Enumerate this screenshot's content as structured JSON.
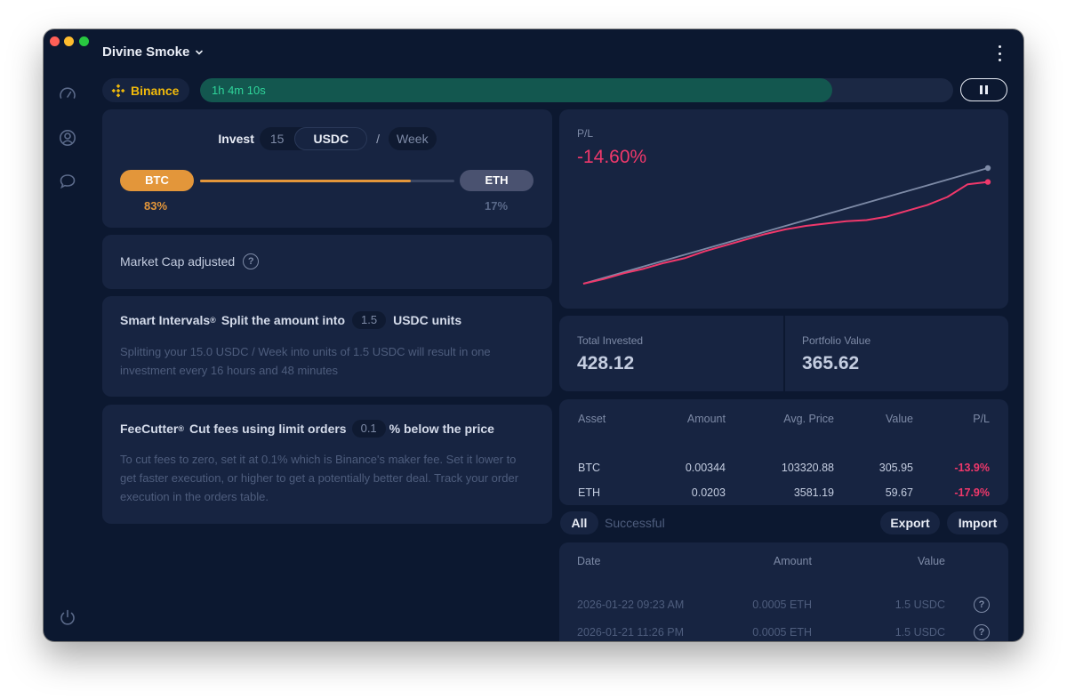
{
  "window": {
    "title": "Divine Smoke"
  },
  "exchange": {
    "name": "Binance",
    "color": "#f0b90b"
  },
  "timer": {
    "label": "1h 4m 10s",
    "progress": 0.84
  },
  "invest": {
    "label": "Invest",
    "amount": "15",
    "currency": "USDC",
    "separator": "/",
    "period": "Week",
    "assets": [
      {
        "symbol": "BTC",
        "percent": "83%",
        "share": 0.83,
        "color": "#e3963a"
      },
      {
        "symbol": "ETH",
        "percent": "17%",
        "share": 0.17,
        "color": "#4a5270"
      }
    ]
  },
  "market_cap": {
    "label": "Market Cap adjusted",
    "help": "?"
  },
  "smart_intervals": {
    "title": "Smart Intervals",
    "reg": "®",
    "text_before": "Split the amount into",
    "value": "1.5",
    "text_after": "USDC units",
    "description": "Splitting your 15.0 USDC / Week into units of 1.5 USDC will result in one investment every 16 hours and 48 minutes"
  },
  "fee_cutter": {
    "title": "FeeCutter",
    "reg": "®",
    "text_before": "Cut fees using limit orders",
    "value": "0.1",
    "text_after": "% below the price",
    "description": "To cut fees to zero, set it at 0.1% which is Binance's maker fee. Set it lower to get faster execution, or higher to get a potentially better deal. Track your order execution in the orders table."
  },
  "pl": {
    "label": "P/L",
    "value": "-14.60%",
    "color": "#f0386b"
  },
  "chart_data": {
    "type": "line",
    "title": "P/L",
    "x": [
      0,
      1,
      2,
      3,
      4,
      5,
      6,
      7,
      8,
      9,
      10,
      11,
      12,
      13,
      14,
      15,
      16,
      17,
      18,
      19,
      20
    ],
    "series": [
      {
        "name": "Total Invested",
        "color": "#7d8aa6",
        "values": [
          0,
          5,
          10,
          15,
          20,
          25,
          30,
          35,
          40,
          45,
          50,
          55,
          60,
          65,
          70,
          75,
          80,
          85,
          90,
          95,
          100
        ]
      },
      {
        "name": "Portfolio Value",
        "color": "#f0386b",
        "values": [
          0,
          4,
          9,
          13,
          18,
          22,
          28,
          33,
          38,
          43,
          47,
          50,
          52,
          54,
          55,
          58,
          63,
          68,
          75,
          86,
          88
        ]
      }
    ]
  },
  "stats": {
    "total_invested": {
      "label": "Total Invested",
      "value": "428.12"
    },
    "portfolio_value": {
      "label": "Portfolio Value",
      "value": "365.62"
    }
  },
  "assets_table": {
    "headers": [
      "Asset",
      "Amount",
      "Avg. Price",
      "Value",
      "P/L"
    ],
    "rows": [
      {
        "asset": "BTC",
        "amount": "0.00344",
        "avg_price": "103320.88",
        "value": "305.95",
        "pl": "-13.9%"
      },
      {
        "asset": "ETH",
        "amount": "0.0203",
        "avg_price": "3581.19",
        "value": "59.67",
        "pl": "-17.9%"
      }
    ]
  },
  "orders": {
    "tabs": [
      "All",
      "Successful"
    ],
    "export_label": "Export",
    "import_label": "Import",
    "headers": [
      "Date",
      "Amount",
      "Value"
    ],
    "rows": [
      {
        "date": "2026-01-22 09:23 AM",
        "amount": "0.0005 ETH",
        "value": "1.5 USDC"
      },
      {
        "date": "2026-01-21 11:26 PM",
        "amount": "0.0005 ETH",
        "value": "1.5 USDC"
      }
    ]
  }
}
